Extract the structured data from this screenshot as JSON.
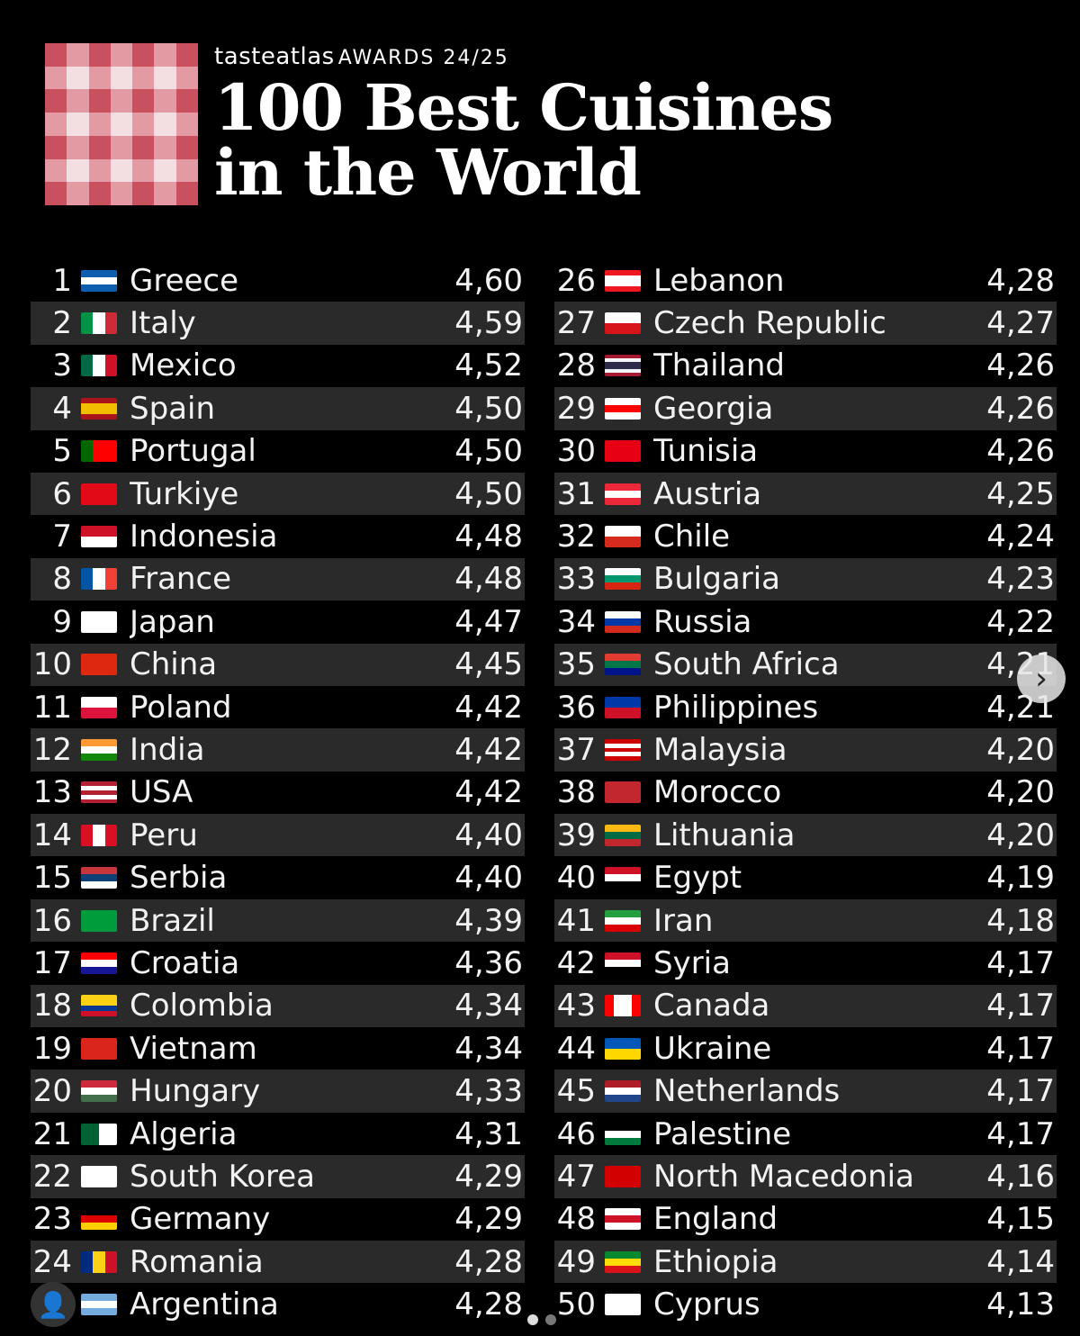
{
  "header": {
    "brand": "tasteatlas",
    "awards": "AWARDS 24/25",
    "title_line1": "100 Best Cuisines",
    "title_line2": "in the World"
  },
  "colors": {
    "accent": "#c8505f",
    "row_alt": "#2a2a2a",
    "background": "#000000"
  },
  "left_list": [
    {
      "rank": "1",
      "country": "Greece",
      "score": "4,60",
      "flag": [
        "#0d5eaf",
        "#ffffff",
        "#0d5eaf"
      ],
      "dir": "h"
    },
    {
      "rank": "2",
      "country": "Italy",
      "score": "4,59",
      "flag": [
        "#009246",
        "#ffffff",
        "#ce2b37"
      ],
      "dir": "v"
    },
    {
      "rank": "3",
      "country": "Mexico",
      "score": "4,52",
      "flag": [
        "#006847",
        "#ffffff",
        "#ce1126"
      ],
      "dir": "v"
    },
    {
      "rank": "4",
      "country": "Spain",
      "score": "4,50",
      "flag": [
        "#aa151b",
        "#f1bf00",
        "#f1bf00",
        "#aa151b"
      ],
      "dir": "h"
    },
    {
      "rank": "5",
      "country": "Portugal",
      "score": "4,50",
      "flag": [
        "#006600",
        "#ff0000",
        "#ff0000"
      ],
      "dir": "v"
    },
    {
      "rank": "6",
      "country": "Turkiye",
      "score": "4,50",
      "flag": [
        "#e30a17"
      ],
      "dir": "h"
    },
    {
      "rank": "7",
      "country": "Indonesia",
      "score": "4,48",
      "flag": [
        "#ce1126",
        "#ffffff"
      ],
      "dir": "h"
    },
    {
      "rank": "8",
      "country": "France",
      "score": "4,48",
      "flag": [
        "#0055a4",
        "#ffffff",
        "#ef4135"
      ],
      "dir": "v"
    },
    {
      "rank": "9",
      "country": "Japan",
      "score": "4,47",
      "flag": [
        "#ffffff"
      ],
      "dir": "h"
    },
    {
      "rank": "10",
      "country": "China",
      "score": "4,45",
      "flag": [
        "#de2910"
      ],
      "dir": "h"
    },
    {
      "rank": "11",
      "country": "Poland",
      "score": "4,42",
      "flag": [
        "#ffffff",
        "#dc143c"
      ],
      "dir": "h"
    },
    {
      "rank": "12",
      "country": "India",
      "score": "4,42",
      "flag": [
        "#ff9933",
        "#ffffff",
        "#138808"
      ],
      "dir": "h"
    },
    {
      "rank": "13",
      "country": "USA",
      "score": "4,42",
      "flag": [
        "#b22234",
        "#ffffff",
        "#b22234",
        "#ffffff",
        "#b22234"
      ],
      "dir": "h"
    },
    {
      "rank": "14",
      "country": "Peru",
      "score": "4,40",
      "flag": [
        "#d91023",
        "#ffffff",
        "#d91023"
      ],
      "dir": "v"
    },
    {
      "rank": "15",
      "country": "Serbia",
      "score": "4,40",
      "flag": [
        "#c6363c",
        "#0c4076",
        "#ffffff"
      ],
      "dir": "h"
    },
    {
      "rank": "16",
      "country": "Brazil",
      "score": "4,39",
      "flag": [
        "#009c3b"
      ],
      "dir": "h"
    },
    {
      "rank": "17",
      "country": "Croatia",
      "score": "4,36",
      "flag": [
        "#ff0000",
        "#ffffff",
        "#171796"
      ],
      "dir": "h"
    },
    {
      "rank": "18",
      "country": "Colombia",
      "score": "4,34",
      "flag": [
        "#fcd116",
        "#fcd116",
        "#003893",
        "#ce1126"
      ],
      "dir": "h"
    },
    {
      "rank": "19",
      "country": "Vietnam",
      "score": "4,34",
      "flag": [
        "#da251d"
      ],
      "dir": "h"
    },
    {
      "rank": "20",
      "country": "Hungary",
      "score": "4,33",
      "flag": [
        "#cd2a3e",
        "#ffffff",
        "#436f4d"
      ],
      "dir": "h"
    },
    {
      "rank": "21",
      "country": "Algeria",
      "score": "4,31",
      "flag": [
        "#006233",
        "#ffffff"
      ],
      "dir": "v"
    },
    {
      "rank": "22",
      "country": "South Korea",
      "score": "4,29",
      "flag": [
        "#ffffff"
      ],
      "dir": "h"
    },
    {
      "rank": "23",
      "country": "Germany",
      "score": "4,29",
      "flag": [
        "#000000",
        "#dd0000",
        "#ffce00"
      ],
      "dir": "h"
    },
    {
      "rank": "24",
      "country": "Romania",
      "score": "4,28",
      "flag": [
        "#002b7f",
        "#fcd116",
        "#ce1126"
      ],
      "dir": "v"
    },
    {
      "rank": "25",
      "country": "Argentina",
      "score": "4,28",
      "flag": [
        "#74acdf",
        "#ffffff",
        "#74acdf"
      ],
      "dir": "h"
    }
  ],
  "right_list": [
    {
      "rank": "26",
      "country": "Lebanon",
      "score": "4,28",
      "flag": [
        "#ee161f",
        "#ffffff",
        "#ffffff",
        "#ee161f"
      ],
      "dir": "h"
    },
    {
      "rank": "27",
      "country": "Czech Republic",
      "score": "4,27",
      "flag": [
        "#ffffff",
        "#d7141a"
      ],
      "dir": "h"
    },
    {
      "rank": "28",
      "country": "Thailand",
      "score": "4,26",
      "flag": [
        "#a51931",
        "#f4f5f8",
        "#2d2a4a",
        "#2d2a4a",
        "#f4f5f8",
        "#a51931"
      ],
      "dir": "h"
    },
    {
      "rank": "29",
      "country": "Georgia",
      "score": "4,26",
      "flag": [
        "#ffffff",
        "#ff0000",
        "#ffffff"
      ],
      "dir": "h"
    },
    {
      "rank": "30",
      "country": "Tunisia",
      "score": "4,26",
      "flag": [
        "#e70013"
      ],
      "dir": "h"
    },
    {
      "rank": "31",
      "country": "Austria",
      "score": "4,25",
      "flag": [
        "#ed2939",
        "#ffffff",
        "#ed2939"
      ],
      "dir": "h"
    },
    {
      "rank": "32",
      "country": "Chile",
      "score": "4,24",
      "flag": [
        "#ffffff",
        "#d52b1e"
      ],
      "dir": "h"
    },
    {
      "rank": "33",
      "country": "Bulgaria",
      "score": "4,23",
      "flag": [
        "#ffffff",
        "#00966e",
        "#d62612"
      ],
      "dir": "h"
    },
    {
      "rank": "34",
      "country": "Russia",
      "score": "4,22",
      "flag": [
        "#ffffff",
        "#0039a6",
        "#d52b1e"
      ],
      "dir": "h"
    },
    {
      "rank": "35",
      "country": "South Africa",
      "score": "4,21",
      "flag": [
        "#e03c31",
        "#007749",
        "#001489"
      ],
      "dir": "h"
    },
    {
      "rank": "36",
      "country": "Philippines",
      "score": "4,21",
      "flag": [
        "#0038a8",
        "#ce1126"
      ],
      "dir": "h"
    },
    {
      "rank": "37",
      "country": "Malaysia",
      "score": "4,20",
      "flag": [
        "#cc0001",
        "#ffffff",
        "#cc0001",
        "#ffffff",
        "#cc0001"
      ],
      "dir": "h"
    },
    {
      "rank": "38",
      "country": "Morocco",
      "score": "4,20",
      "flag": [
        "#c1272d"
      ],
      "dir": "h"
    },
    {
      "rank": "39",
      "country": "Lithuania",
      "score": "4,20",
      "flag": [
        "#fdb913",
        "#006a44",
        "#c1272d"
      ],
      "dir": "h"
    },
    {
      "rank": "40",
      "country": "Egypt",
      "score": "4,19",
      "flag": [
        "#ce1126",
        "#ffffff",
        "#000000"
      ],
      "dir": "h"
    },
    {
      "rank": "41",
      "country": "Iran",
      "score": "4,18",
      "flag": [
        "#239f40",
        "#ffffff",
        "#da0000"
      ],
      "dir": "h"
    },
    {
      "rank": "42",
      "country": "Syria",
      "score": "4,17",
      "flag": [
        "#ce1126",
        "#ffffff",
        "#000000"
      ],
      "dir": "h"
    },
    {
      "rank": "43",
      "country": "Canada",
      "score": "4,17",
      "flag": [
        "#ff0000",
        "#ffffff",
        "#ffffff",
        "#ff0000"
      ],
      "dir": "v"
    },
    {
      "rank": "44",
      "country": "Ukraine",
      "score": "4,17",
      "flag": [
        "#0057b7",
        "#ffd700"
      ],
      "dir": "h"
    },
    {
      "rank": "45",
      "country": "Netherlands",
      "score": "4,17",
      "flag": [
        "#ae1c28",
        "#ffffff",
        "#21468b"
      ],
      "dir": "h"
    },
    {
      "rank": "46",
      "country": "Palestine",
      "score": "4,17",
      "flag": [
        "#000000",
        "#ffffff",
        "#007a3d"
      ],
      "dir": "h"
    },
    {
      "rank": "47",
      "country": "North Macedonia",
      "score": "4,16",
      "flag": [
        "#d20000"
      ],
      "dir": "h"
    },
    {
      "rank": "48",
      "country": "England",
      "score": "4,15",
      "flag": [
        "#ffffff",
        "#ce1124",
        "#ffffff"
      ],
      "dir": "h"
    },
    {
      "rank": "49",
      "country": "Ethiopia",
      "score": "4,14",
      "flag": [
        "#078930",
        "#fcdd09",
        "#da121a"
      ],
      "dir": "h"
    },
    {
      "rank": "50",
      "country": "Cyprus",
      "score": "4,13",
      "flag": [
        "#ffffff"
      ],
      "dir": "h"
    }
  ],
  "nav": {
    "next_icon": "chevron-right-icon",
    "user_icon": "user-icon"
  }
}
